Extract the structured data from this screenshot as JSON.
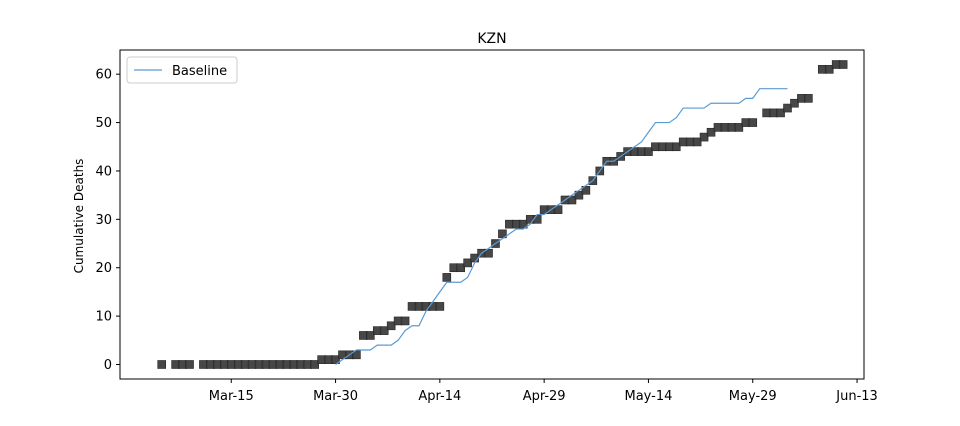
{
  "chart_data": {
    "type": "scatter",
    "title": "KZN",
    "xlabel": "",
    "ylabel": "Cumulative Deaths",
    "x_tick_labels": [
      "Mar-15",
      "Mar-30",
      "Apr-14",
      "Apr-29",
      "May-14",
      "May-29",
      "Jun-13"
    ],
    "x_tick_dates": [
      "2020-03-15",
      "2020-03-30",
      "2020-04-14",
      "2020-04-29",
      "2020-05-14",
      "2020-05-29",
      "2020-06-13"
    ],
    "xlim": [
      "2020-02-28",
      "2020-06-14"
    ],
    "y_ticks": [
      0,
      10,
      20,
      30,
      40,
      50,
      60
    ],
    "ylim": [
      -3,
      65
    ],
    "grid": false,
    "legend": {
      "position": "top-left",
      "entries": [
        "Baseline"
      ]
    },
    "series": [
      {
        "name": "",
        "style": "square markers",
        "color": "#3d3d3d",
        "points": [
          [
            "2020-03-05",
            0
          ],
          [
            "2020-03-07",
            0
          ],
          [
            "2020-03-08",
            0
          ],
          [
            "2020-03-09",
            0
          ],
          [
            "2020-03-11",
            0
          ],
          [
            "2020-03-12",
            0
          ],
          [
            "2020-03-13",
            0
          ],
          [
            "2020-03-14",
            0
          ],
          [
            "2020-03-15",
            0
          ],
          [
            "2020-03-16",
            0
          ],
          [
            "2020-03-17",
            0
          ],
          [
            "2020-03-18",
            0
          ],
          [
            "2020-03-19",
            0
          ],
          [
            "2020-03-20",
            0
          ],
          [
            "2020-03-21",
            0
          ],
          [
            "2020-03-22",
            0
          ],
          [
            "2020-03-23",
            0
          ],
          [
            "2020-03-24",
            0
          ],
          [
            "2020-03-25",
            0
          ],
          [
            "2020-03-26",
            0
          ],
          [
            "2020-03-27",
            0
          ],
          [
            "2020-03-28",
            1
          ],
          [
            "2020-03-29",
            1
          ],
          [
            "2020-03-30",
            1
          ],
          [
            "2020-03-31",
            2
          ],
          [
            "2020-04-01",
            2
          ],
          [
            "2020-04-02",
            2
          ],
          [
            "2020-04-03",
            6
          ],
          [
            "2020-04-04",
            6
          ],
          [
            "2020-04-05",
            7
          ],
          [
            "2020-04-06",
            7
          ],
          [
            "2020-04-07",
            8
          ],
          [
            "2020-04-08",
            9
          ],
          [
            "2020-04-09",
            9
          ],
          [
            "2020-04-10",
            12
          ],
          [
            "2020-04-11",
            12
          ],
          [
            "2020-04-12",
            12
          ],
          [
            "2020-04-13",
            12
          ],
          [
            "2020-04-14",
            12
          ],
          [
            "2020-04-15",
            18
          ],
          [
            "2020-04-16",
            20
          ],
          [
            "2020-04-17",
            20
          ],
          [
            "2020-04-18",
            21
          ],
          [
            "2020-04-19",
            22
          ],
          [
            "2020-04-20",
            23
          ],
          [
            "2020-04-21",
            23
          ],
          [
            "2020-04-22",
            25
          ],
          [
            "2020-04-23",
            27
          ],
          [
            "2020-04-24",
            29
          ],
          [
            "2020-04-25",
            29
          ],
          [
            "2020-04-26",
            29
          ],
          [
            "2020-04-27",
            30
          ],
          [
            "2020-04-28",
            30
          ],
          [
            "2020-04-29",
            32
          ],
          [
            "2020-04-30",
            32
          ],
          [
            "2020-05-01",
            32
          ],
          [
            "2020-05-02",
            34
          ],
          [
            "2020-05-03",
            34
          ],
          [
            "2020-05-04",
            35
          ],
          [
            "2020-05-05",
            36
          ],
          [
            "2020-05-06",
            38
          ],
          [
            "2020-05-07",
            40
          ],
          [
            "2020-05-08",
            42
          ],
          [
            "2020-05-09",
            42
          ],
          [
            "2020-05-10",
            43
          ],
          [
            "2020-05-11",
            44
          ],
          [
            "2020-05-12",
            44
          ],
          [
            "2020-05-13",
            44
          ],
          [
            "2020-05-14",
            44
          ],
          [
            "2020-05-15",
            45
          ],
          [
            "2020-05-16",
            45
          ],
          [
            "2020-05-17",
            45
          ],
          [
            "2020-05-18",
            45
          ],
          [
            "2020-05-19",
            46
          ],
          [
            "2020-05-20",
            46
          ],
          [
            "2020-05-21",
            46
          ],
          [
            "2020-05-22",
            47
          ],
          [
            "2020-05-23",
            48
          ],
          [
            "2020-05-24",
            49
          ],
          [
            "2020-05-25",
            49
          ],
          [
            "2020-05-26",
            49
          ],
          [
            "2020-05-27",
            49
          ],
          [
            "2020-05-28",
            50
          ],
          [
            "2020-05-29",
            50
          ],
          [
            "2020-05-31",
            52
          ],
          [
            "2020-06-01",
            52
          ],
          [
            "2020-06-02",
            52
          ],
          [
            "2020-06-03",
            53
          ],
          [
            "2020-06-04",
            54
          ],
          [
            "2020-06-05",
            55
          ],
          [
            "2020-06-06",
            55
          ],
          [
            "2020-06-08",
            61
          ],
          [
            "2020-06-09",
            61
          ],
          [
            "2020-06-10",
            62
          ],
          [
            "2020-06-11",
            62
          ]
        ]
      },
      {
        "name": "Baseline",
        "style": "line",
        "color": "#5b9bd5",
        "points": [
          [
            "2020-03-30",
            0
          ],
          [
            "2020-03-31",
            1
          ],
          [
            "2020-04-01",
            2
          ],
          [
            "2020-04-02",
            3
          ],
          [
            "2020-04-03",
            3
          ],
          [
            "2020-04-04",
            3
          ],
          [
            "2020-04-05",
            4
          ],
          [
            "2020-04-06",
            4
          ],
          [
            "2020-04-07",
            4
          ],
          [
            "2020-04-08",
            5
          ],
          [
            "2020-04-09",
            7
          ],
          [
            "2020-04-10",
            8
          ],
          [
            "2020-04-11",
            8
          ],
          [
            "2020-04-12",
            11
          ],
          [
            "2020-04-13",
            13
          ],
          [
            "2020-04-14",
            15
          ],
          [
            "2020-04-15",
            17
          ],
          [
            "2020-04-16",
            17
          ],
          [
            "2020-04-17",
            17
          ],
          [
            "2020-04-18",
            18
          ],
          [
            "2020-04-19",
            21
          ],
          [
            "2020-04-20",
            23
          ],
          [
            "2020-04-21",
            24
          ],
          [
            "2020-04-22",
            25
          ],
          [
            "2020-04-23",
            26
          ],
          [
            "2020-04-24",
            27
          ],
          [
            "2020-04-25",
            28
          ],
          [
            "2020-04-26",
            28
          ],
          [
            "2020-04-27",
            29
          ],
          [
            "2020-04-28",
            31
          ],
          [
            "2020-04-29",
            31
          ],
          [
            "2020-04-30",
            32
          ],
          [
            "2020-05-01",
            33
          ],
          [
            "2020-05-02",
            34
          ],
          [
            "2020-05-03",
            35
          ],
          [
            "2020-05-04",
            36
          ],
          [
            "2020-05-05",
            37
          ],
          [
            "2020-05-06",
            38
          ],
          [
            "2020-05-07",
            40
          ],
          [
            "2020-05-08",
            42
          ],
          [
            "2020-05-09",
            42
          ],
          [
            "2020-05-10",
            43
          ],
          [
            "2020-05-11",
            44
          ],
          [
            "2020-05-12",
            45
          ],
          [
            "2020-05-13",
            46
          ],
          [
            "2020-05-14",
            48
          ],
          [
            "2020-05-15",
            50
          ],
          [
            "2020-05-16",
            50
          ],
          [
            "2020-05-17",
            50
          ],
          [
            "2020-05-18",
            51
          ],
          [
            "2020-05-19",
            53
          ],
          [
            "2020-05-20",
            53
          ],
          [
            "2020-05-21",
            53
          ],
          [
            "2020-05-22",
            53
          ],
          [
            "2020-05-23",
            54
          ],
          [
            "2020-05-24",
            54
          ],
          [
            "2020-05-25",
            54
          ],
          [
            "2020-05-26",
            54
          ],
          [
            "2020-05-27",
            54
          ],
          [
            "2020-05-28",
            55
          ],
          [
            "2020-05-29",
            55
          ],
          [
            "2020-05-30",
            57
          ],
          [
            "2020-05-31",
            57
          ],
          [
            "2020-06-01",
            57
          ],
          [
            "2020-06-02",
            57
          ],
          [
            "2020-06-03",
            57
          ]
        ]
      }
    ]
  }
}
